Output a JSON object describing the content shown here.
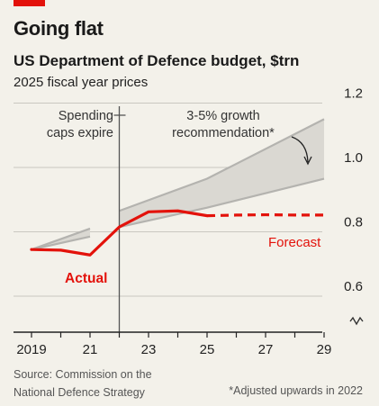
{
  "header": {
    "title": "Going flat",
    "subtitle": "US Department of Defence budget, $trn",
    "unit": "2025 fiscal year prices"
  },
  "footer": {
    "source_line1": "Source: Commission on the",
    "source_line2": "National Defence Strategy",
    "footnote": "*Adjusted upwards in 2022"
  },
  "colors": {
    "accent": "#e3120b",
    "actual": "#e3120b",
    "band_fill": "#dad8d2",
    "band_line": "#b4b3af",
    "grid": "#c9c7c0",
    "background": "#f3f1ea"
  },
  "chart_data": {
    "type": "line",
    "title": "US Department of Defence budget, $trn",
    "subtitle": "2025 fiscal year prices",
    "xlim": [
      2019,
      2029
    ],
    "ylim": [
      0.55,
      1.2
    ],
    "y_ticks": [
      "0.6",
      "0.8",
      "1.0",
      "1.2"
    ],
    "y_tick_values": [
      0.6,
      0.8,
      1.0,
      1.2
    ],
    "x_ticks": [
      "2019",
      "21",
      "23",
      "25",
      "27",
      "29"
    ],
    "x_tick_values": [
      2019,
      2021,
      2023,
      2025,
      2027,
      2029
    ],
    "y_axis_side": "right",
    "grid": true,
    "axis_break": true,
    "series": [
      {
        "name": "Actual",
        "style": "solid",
        "x": [
          2019,
          2020,
          2021,
          2022,
          2023,
          2024,
          2025
        ],
        "y": [
          0.745,
          0.743,
          0.728,
          0.815,
          0.862,
          0.865,
          0.85
        ]
      },
      {
        "name": "Forecast",
        "style": "dashed",
        "x": [
          2025,
          2026,
          2027,
          2028,
          2029
        ],
        "y": [
          0.85,
          0.852,
          0.853,
          0.852,
          0.852
        ]
      }
    ],
    "band_early": {
      "x": [
        2019,
        2021
      ],
      "upper": [
        0.745,
        0.81
      ],
      "lower": [
        0.745,
        0.785
      ]
    },
    "band_recommendation": {
      "x": [
        2022,
        2025,
        2029
      ],
      "upper": [
        0.865,
        0.965,
        1.15
      ],
      "lower": [
        0.815,
        0.875,
        0.965
      ]
    },
    "marker_x": 2022,
    "annotations": {
      "caps_line1": "Spending",
      "caps_line2": "caps expire",
      "rec_line1": "3-5% growth",
      "rec_line2": "recommendation*",
      "actual_label": "Actual",
      "forecast_label": "Forecast"
    }
  }
}
